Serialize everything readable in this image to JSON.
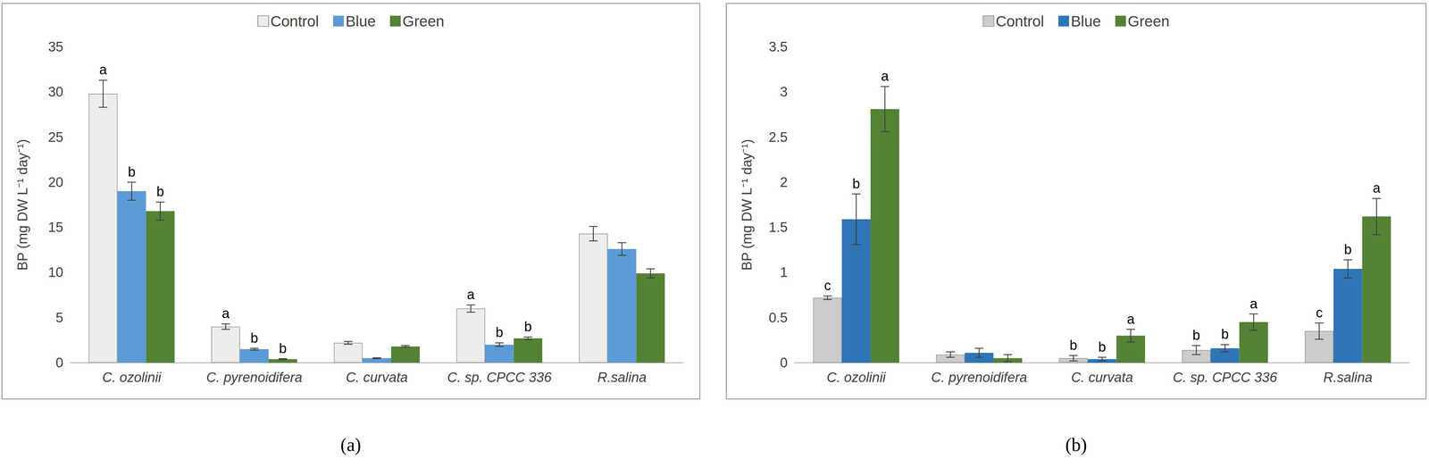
{
  "chart_data": [
    {
      "type": "bar",
      "title": "(a)",
      "y_label": "BP (mg DW L⁻¹ day⁻¹)",
      "categories": [
        "C. ozolinii",
        "C. pyrenoidifera",
        "C. curvata",
        "C. sp. CPCC 336",
        "R.salina"
      ],
      "series": [
        {
          "name": "Control",
          "color": "#f2f2f2",
          "values": [
            29.8,
            4.0,
            2.2,
            6.0,
            14.3
          ],
          "errors": [
            1.5,
            0.3,
            0.15,
            0.4,
            0.8
          ],
          "annotations": [
            "a",
            "a",
            null,
            "a",
            null
          ]
        },
        {
          "name": "Blue",
          "color": "#5b9bd5",
          "values": [
            19.0,
            1.5,
            0.5,
            2.0,
            12.6
          ],
          "errors": [
            1.0,
            0.1,
            0.05,
            0.2,
            0.7
          ],
          "annotations": [
            "b",
            "b",
            null,
            "b",
            null
          ]
        },
        {
          "name": "Green",
          "color": "#548235",
          "values": [
            16.8,
            0.4,
            1.8,
            2.7,
            9.9
          ],
          "errors": [
            1.0,
            0.05,
            0.1,
            0.15,
            0.5
          ],
          "annotations": [
            "b",
            "b",
            null,
            "b",
            null
          ]
        }
      ],
      "ylim": [
        0,
        35
      ],
      "yticks": [
        0,
        5,
        10,
        15,
        20,
        25,
        30,
        35
      ],
      "grid": false,
      "legend": "top"
    },
    {
      "type": "bar",
      "title": "(b)",
      "y_label": "BP (mg DW L⁻¹ day⁻¹)",
      "categories": [
        "C. ozolinii",
        "C. pyrenoidifera",
        "C. curvata",
        "C. sp. CPCC 336",
        "R.salina"
      ],
      "series": [
        {
          "name": "Control",
          "color": "#d0d0d0",
          "values": [
            0.72,
            0.09,
            0.05,
            0.14,
            0.35
          ],
          "errors": [
            0.02,
            0.03,
            0.03,
            0.05,
            0.09
          ],
          "annotations": [
            "c",
            null,
            "b",
            "b",
            "c"
          ]
        },
        {
          "name": "Blue",
          "color": "#2e75b6",
          "values": [
            1.59,
            0.11,
            0.04,
            0.16,
            1.04
          ],
          "errors": [
            0.28,
            0.05,
            0.02,
            0.04,
            0.1
          ],
          "annotations": [
            "b",
            null,
            "b",
            "b",
            "b"
          ]
        },
        {
          "name": "Green",
          "color": "#548235",
          "values": [
            2.81,
            0.05,
            0.3,
            0.45,
            1.62
          ],
          "errors": [
            0.25,
            0.04,
            0.07,
            0.09,
            0.2
          ],
          "annotations": [
            "a",
            null,
            "a",
            "a",
            "a"
          ]
        }
      ],
      "ylim": [
        0,
        3.5
      ],
      "yticks": [
        0,
        0.5,
        1,
        1.5,
        2,
        2.5,
        3,
        3.5
      ],
      "grid": false,
      "legend": "top"
    }
  ]
}
